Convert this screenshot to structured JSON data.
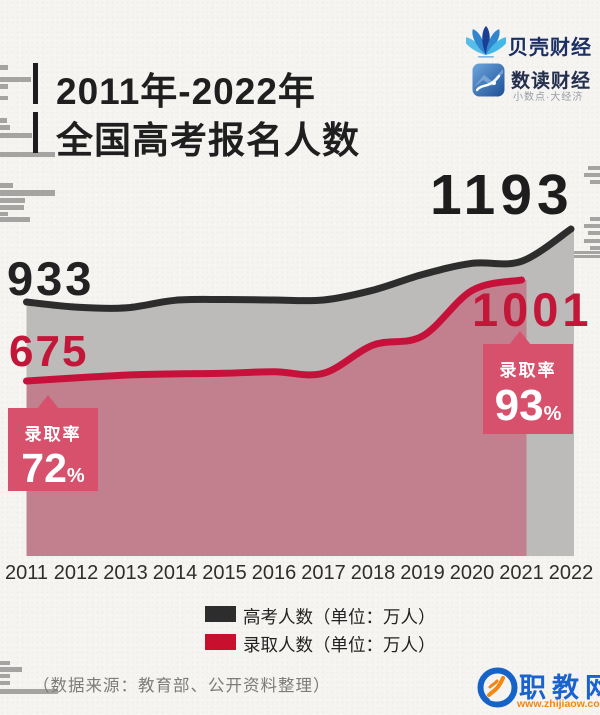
{
  "header": {
    "title_line1": "2011年-2022年",
    "title_line2": "全国高考报名人数"
  },
  "logos": {
    "beike": {
      "name": "贝壳财经"
    },
    "shudu": {
      "name": "数读财经",
      "tagline": "小数点·大经济"
    }
  },
  "chart_data": {
    "type": "area",
    "title": "2011年-2022年全国高考报名人数",
    "x": [
      2011,
      2012,
      2013,
      2014,
      2015,
      2016,
      2017,
      2018,
      2019,
      2020,
      2021,
      2022
    ],
    "series": [
      {
        "name": "高考人数（单位：万人）",
        "color": "#2d2d2d",
        "values": [
          933,
          915,
          912,
          939,
          942,
          940,
          940,
          975,
          1031,
          1071,
          1078,
          1193
        ]
      },
      {
        "name": "录取人数（单位：万人）",
        "color": "#c6123a",
        "values": [
          675,
          685,
          694,
          698,
          700,
          705,
          700,
          791,
          820,
          967,
          1001
        ]
      }
    ],
    "point_labels": {
      "exam_start": "933",
      "exam_end": "1193",
      "admit_start": "675",
      "admit_end": "1001"
    },
    "annotations": [
      {
        "label": "录取率",
        "value": "72",
        "unit": "%",
        "year": 2011
      },
      {
        "label": "录取率",
        "value": "93",
        "unit": "%",
        "year": 2021
      }
    ],
    "legend_position": "bottom",
    "grid": false,
    "fills": {
      "exam_area": "#bcbbb9",
      "admit_area": "#c2808e"
    }
  },
  "legend": [
    {
      "label": "高考人数（单位：万人）",
      "color": "#2d2d2d"
    },
    {
      "label": "录取人数（单位：万人）",
      "color": "#c8102e"
    }
  ],
  "footer": {
    "source": "（数据来源：教育部、公开资料整理）"
  },
  "watermark": {
    "site_name": "职教网",
    "url": "www.zhijiaow.com"
  },
  "colors": {
    "accent_red": "#c3173a",
    "callout_bg": "#d7506c",
    "ink_black": "#1d1d1d",
    "logo_navy": "#1c2f63",
    "watermark_blue": "#1a63cf",
    "watermark_orange": "#f5860f"
  }
}
